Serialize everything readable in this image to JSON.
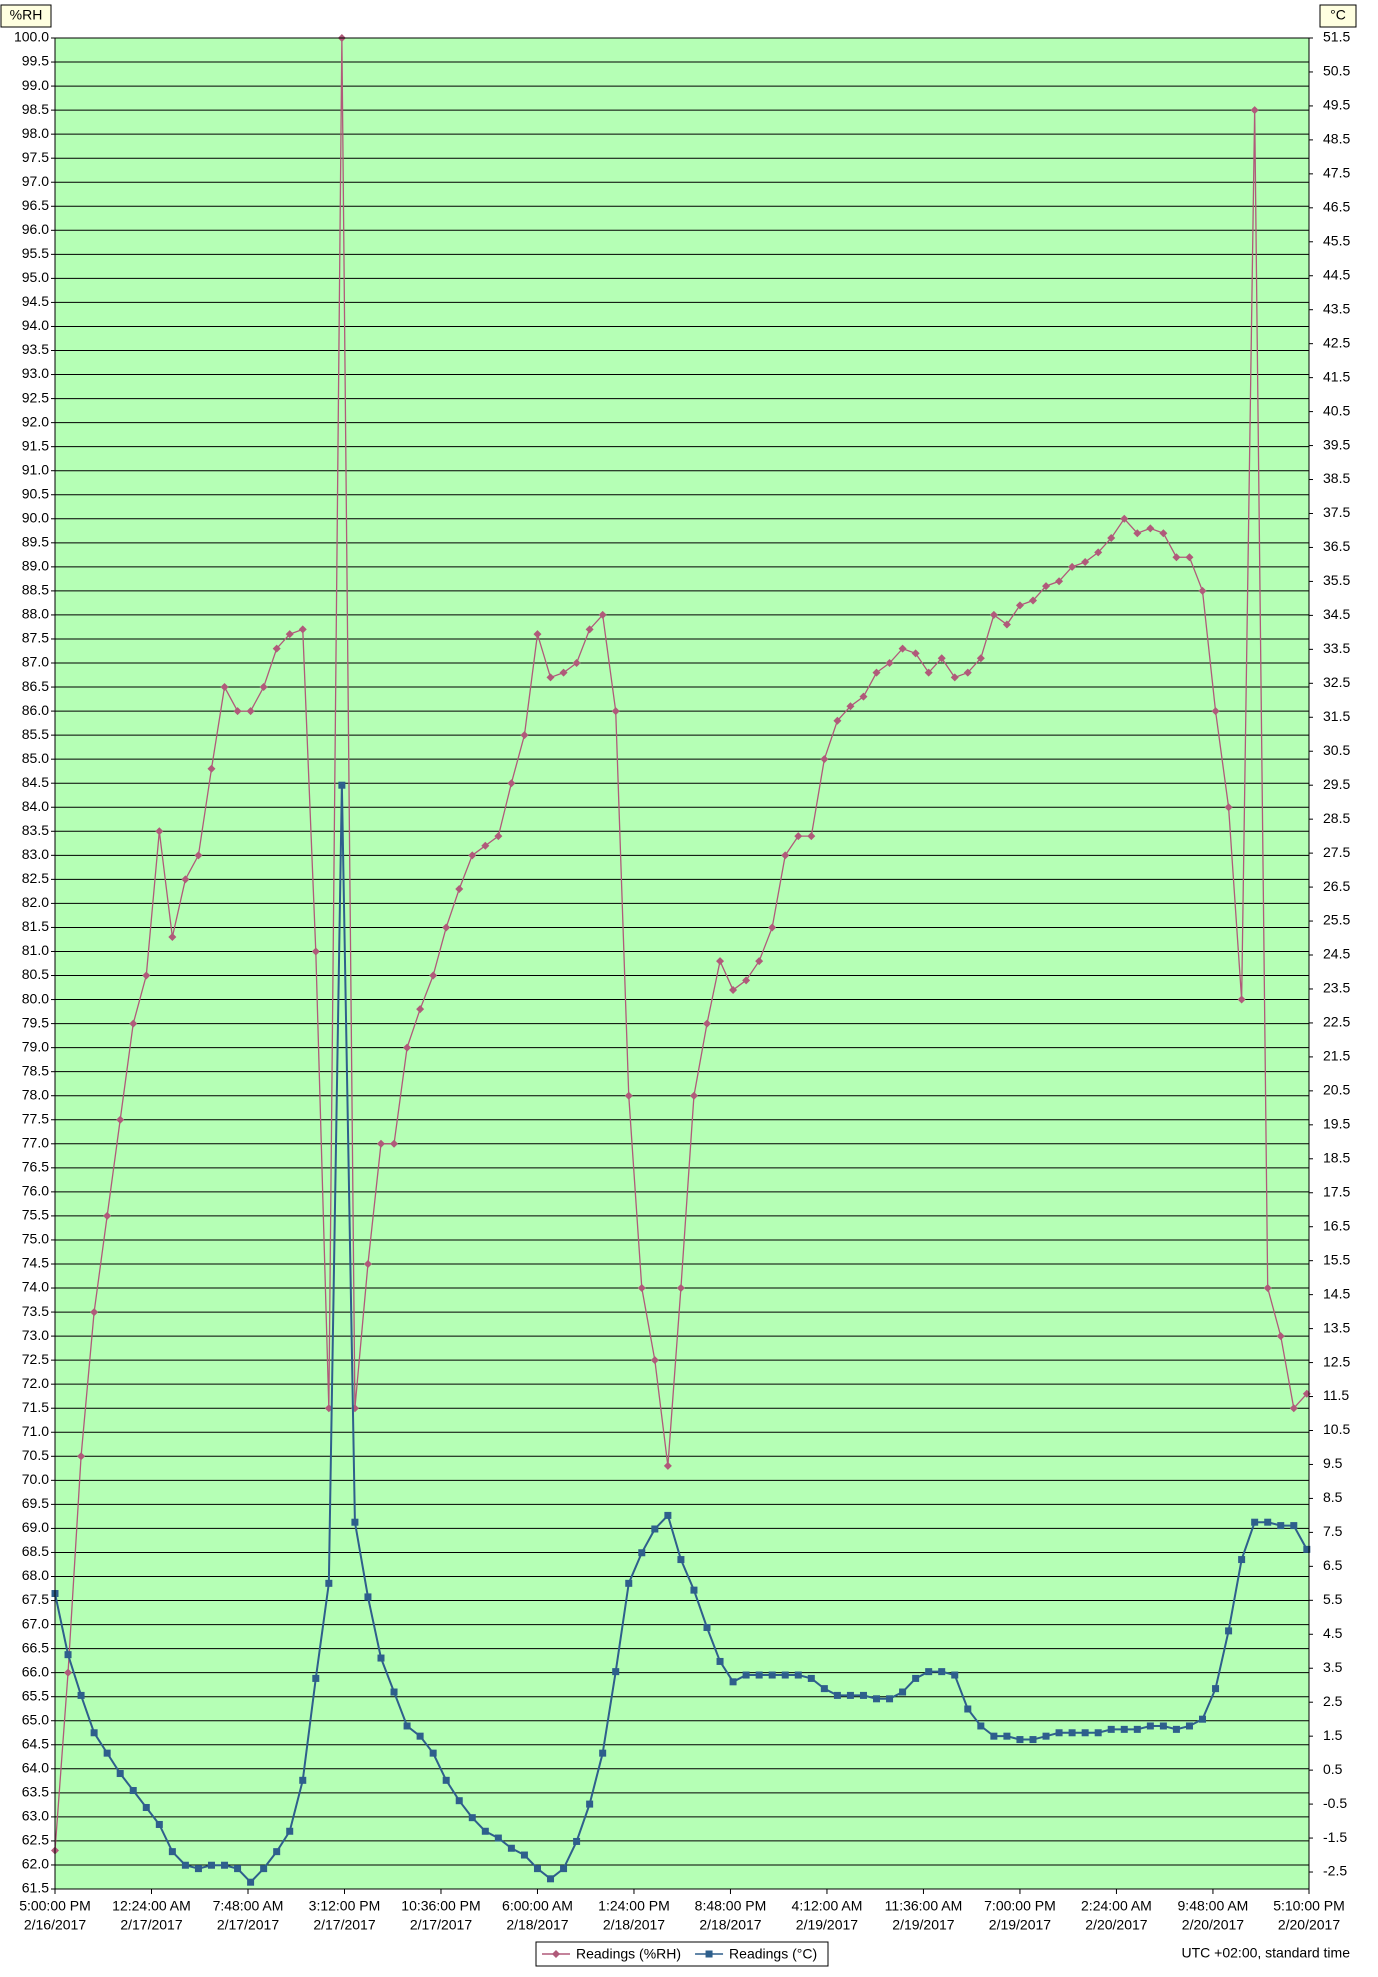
{
  "chart_data": {
    "type": "line",
    "y_label": "%RH",
    "y2_label": "°C",
    "footnote": "UTC +02:00, standard time",
    "background": "#b5ffb5",
    "grid": true,
    "xlim": [
      "2017-02-16T17:00",
      "2017-02-20T17:10"
    ],
    "xticks": [
      {
        "value": "2017-02-16T17:00",
        "label": [
          "5:00:00 PM",
          "2/16/2017"
        ]
      },
      {
        "value": "2017-02-17T00:24",
        "label": [
          "12:24:00 AM",
          "2/17/2017"
        ]
      },
      {
        "value": "2017-02-17T07:48",
        "label": [
          "7:48:00 AM",
          "2/17/2017"
        ]
      },
      {
        "value": "2017-02-17T15:12",
        "label": [
          "3:12:00 PM",
          "2/17/2017"
        ]
      },
      {
        "value": "2017-02-17T22:36",
        "label": [
          "10:36:00 PM",
          "2/17/2017"
        ]
      },
      {
        "value": "2017-02-18T06:00",
        "label": [
          "6:00:00 AM",
          "2/18/2017"
        ]
      },
      {
        "value": "2017-02-18T13:24",
        "label": [
          "1:24:00 PM",
          "2/18/2017"
        ]
      },
      {
        "value": "2017-02-18T20:48",
        "label": [
          "8:48:00 PM",
          "2/18/2017"
        ]
      },
      {
        "value": "2017-02-19T04:12",
        "label": [
          "4:12:00 AM",
          "2/19/2017"
        ]
      },
      {
        "value": "2017-02-19T11:36",
        "label": [
          "11:36:00 AM",
          "2/19/2017"
        ]
      },
      {
        "value": "2017-02-19T19:00",
        "label": [
          "7:00:00 PM",
          "2/19/2017"
        ]
      },
      {
        "value": "2017-02-20T02:24",
        "label": [
          "2:24:00 AM",
          "2/20/2017"
        ]
      },
      {
        "value": "2017-02-20T09:48",
        "label": [
          "9:48:00 AM",
          "2/20/2017"
        ]
      },
      {
        "value": "2017-02-20T17:10",
        "label": [
          "5:10:00 PM",
          "2/20/2017"
        ]
      }
    ],
    "ylim": [
      61.5,
      100
    ],
    "yticks": [
      61.5,
      {
        "value": 62,
        "label": "62.0"
      },
      62.5,
      {
        "value": 63,
        "label": "63.0"
      },
      63.5,
      {
        "value": 64,
        "label": "64.0"
      },
      64.5,
      {
        "value": 65,
        "label": "65.0"
      },
      65.5,
      {
        "value": 66,
        "label": "66.0"
      },
      66.5,
      {
        "value": 67,
        "label": "67.0"
      },
      67.5,
      {
        "value": 68,
        "label": "68.0"
      },
      68.5,
      {
        "value": 69,
        "label": "69.0"
      },
      69.5,
      {
        "value": 70,
        "label": "70.0"
      },
      70.5,
      {
        "value": 71,
        "label": "71.0"
      },
      71.5,
      {
        "value": 72,
        "label": "72.0"
      },
      72.5,
      {
        "value": 73,
        "label": "73.0"
      },
      73.5,
      {
        "value": 74,
        "label": "74.0"
      },
      74.5,
      {
        "value": 75,
        "label": "75.0"
      },
      75.5,
      {
        "value": 76,
        "label": "76.0"
      },
      76.5,
      {
        "value": 77,
        "label": "77.0"
      },
      77.5,
      {
        "value": 78,
        "label": "78.0"
      },
      78.5,
      {
        "value": 79,
        "label": "79.0"
      },
      79.5,
      {
        "value": 80,
        "label": "80.0"
      },
      80.5,
      {
        "value": 81,
        "label": "81.0"
      },
      81.5,
      {
        "value": 82,
        "label": "82.0"
      },
      82.5,
      {
        "value": 83,
        "label": "83.0"
      },
      83.5,
      {
        "value": 84,
        "label": "84.0"
      },
      84.5,
      {
        "value": 85,
        "label": "85.0"
      },
      85.5,
      {
        "value": 86,
        "label": "86.0"
      },
      86.5,
      {
        "value": 87,
        "label": "87.0"
      },
      87.5,
      {
        "value": 88,
        "label": "88.0"
      },
      88.5,
      {
        "value": 89,
        "label": "89.0"
      },
      89.5,
      {
        "value": 90,
        "label": "90.0"
      },
      90.5,
      {
        "value": 91,
        "label": "91.0"
      },
      91.5,
      {
        "value": 92,
        "label": "92.0"
      },
      92.5,
      {
        "value": 93,
        "label": "93.0"
      },
      93.5,
      {
        "value": 94,
        "label": "94.0"
      },
      94.5,
      {
        "value": 95,
        "label": "95.0"
      },
      95.5,
      {
        "value": 96,
        "label": "96.0"
      },
      96.5,
      {
        "value": 97,
        "label": "97.0"
      },
      97.5,
      {
        "value": 98,
        "label": "98.0"
      },
      98.5,
      {
        "value": 99,
        "label": "99.0"
      },
      99.5,
      {
        "value": 100,
        "label": "100.0"
      }
    ],
    "y2lim": [
      -3,
      51.5
    ],
    "y2ticks": [
      -2.5,
      -1.5,
      -0.5,
      0.5,
      1.5,
      2.5,
      3.5,
      4.5,
      5.5,
      6.5,
      7.5,
      8.5,
      9.5,
      10.5,
      11.5,
      12.5,
      13.5,
      14.5,
      15.5,
      16.5,
      17.5,
      18.5,
      19.5,
      20.5,
      21.5,
      22.5,
      23.5,
      24.5,
      25.5,
      26.5,
      27.5,
      28.5,
      29.5,
      30.5,
      31.5,
      32.5,
      33.5,
      34.5,
      35.5,
      36.5,
      37.5,
      38.5,
      39.5,
      40.5,
      41.5,
      42.5,
      43.5,
      44.5,
      45.5,
      46.5,
      47.5,
      48.5,
      49.5,
      50.5,
      51.5
    ],
    "x": [
      "2017-02-16T17:00",
      "2017-02-16T18:00",
      "2017-02-16T19:00",
      "2017-02-16T20:00",
      "2017-02-16T21:00",
      "2017-02-16T22:00",
      "2017-02-16T23:00",
      "2017-02-17T00:00",
      "2017-02-17T01:00",
      "2017-02-17T02:00",
      "2017-02-17T03:00",
      "2017-02-17T04:00",
      "2017-02-17T05:00",
      "2017-02-17T06:00",
      "2017-02-17T07:00",
      "2017-02-17T08:00",
      "2017-02-17T09:00",
      "2017-02-17T10:00",
      "2017-02-17T11:00",
      "2017-02-17T12:00",
      "2017-02-17T13:00",
      "2017-02-17T14:00",
      "2017-02-17T15:00",
      "2017-02-17T16:00",
      "2017-02-17T17:00",
      "2017-02-17T18:00",
      "2017-02-17T19:00",
      "2017-02-17T20:00",
      "2017-02-17T21:00",
      "2017-02-17T22:00",
      "2017-02-17T23:00",
      "2017-02-18T00:00",
      "2017-02-18T01:00",
      "2017-02-18T02:00",
      "2017-02-18T03:00",
      "2017-02-18T04:00",
      "2017-02-18T05:00",
      "2017-02-18T06:00",
      "2017-02-18T07:00",
      "2017-02-18T08:00",
      "2017-02-18T09:00",
      "2017-02-18T10:00",
      "2017-02-18T11:00",
      "2017-02-18T12:00",
      "2017-02-18T13:00",
      "2017-02-18T14:00",
      "2017-02-18T15:00",
      "2017-02-18T16:00",
      "2017-02-18T17:00",
      "2017-02-18T18:00",
      "2017-02-18T19:00",
      "2017-02-18T20:00",
      "2017-02-18T21:00",
      "2017-02-18T22:00",
      "2017-02-18T23:00",
      "2017-02-19T00:00",
      "2017-02-19T01:00",
      "2017-02-19T02:00",
      "2017-02-19T03:00",
      "2017-02-19T04:00",
      "2017-02-19T05:00",
      "2017-02-19T06:00",
      "2017-02-19T07:00",
      "2017-02-19T08:00",
      "2017-02-19T09:00",
      "2017-02-19T10:00",
      "2017-02-19T11:00",
      "2017-02-19T12:00",
      "2017-02-19T13:00",
      "2017-02-19T14:00",
      "2017-02-19T15:00",
      "2017-02-19T16:00",
      "2017-02-19T17:00",
      "2017-02-19T18:00",
      "2017-02-19T19:00",
      "2017-02-19T20:00",
      "2017-02-19T21:00",
      "2017-02-19T22:00",
      "2017-02-19T23:00",
      "2017-02-20T00:00",
      "2017-02-20T01:00",
      "2017-02-20T02:00",
      "2017-02-20T03:00",
      "2017-02-20T04:00",
      "2017-02-20T05:00",
      "2017-02-20T06:00",
      "2017-02-20T07:00",
      "2017-02-20T08:00",
      "2017-02-20T09:00",
      "2017-02-20T10:00",
      "2017-02-20T11:00",
      "2017-02-20T12:00",
      "2017-02-20T13:00",
      "2017-02-20T14:00",
      "2017-02-20T15:00",
      "2017-02-20T16:00",
      "2017-02-20T17:00"
    ],
    "series": [
      {
        "name": "Readings (%RH)",
        "color": "#b05a7a",
        "marker": "diamond",
        "values": [
          62.3,
          66,
          70.5,
          73.5,
          75.5,
          77.5,
          79.5,
          80.5,
          83.5,
          81.3,
          82.5,
          83,
          84.8,
          86.5,
          86,
          86,
          86.5,
          87.3,
          87.6,
          87.7,
          81,
          71.5,
          100,
          71.5,
          74.5,
          77,
          77,
          79,
          79.8,
          80.5,
          81.5,
          82.3,
          83,
          83.2,
          83.4,
          84.5,
          85.5,
          87.6,
          86.7,
          86.8,
          87,
          87.7,
          88,
          86,
          78,
          74,
          72.5,
          70.3,
          74,
          78,
          79.5,
          80.8,
          80.2,
          80.4,
          80.8,
          81.5,
          83,
          83.4,
          83.4,
          85,
          85.8,
          86.1,
          86.3,
          86.8,
          87,
          87.3,
          87.2,
          86.8,
          87.1,
          86.7,
          86.8,
          87.1,
          88,
          87.8,
          88.2,
          88.3,
          88.6,
          88.7,
          89,
          89.1,
          89.3,
          89.6,
          90,
          89.7,
          89.8,
          89.7,
          89.2,
          89.2,
          88.5,
          86,
          84,
          80,
          98.5,
          74,
          73,
          71.5,
          71.8
        ]
      },
      {
        "name": "Readings (°C)",
        "color": "#2e5f8c",
        "marker": "square",
        "axis": "y2",
        "values": [
          5.7,
          3.9,
          2.7,
          1.6,
          1.0,
          0.4,
          -0.1,
          -0.6,
          -1.1,
          -1.9,
          -2.3,
          -2.4,
          -2.3,
          -2.3,
          -2.4,
          -2.8,
          -2.4,
          -1.9,
          -1.3,
          0.2,
          3.2,
          6.0,
          29.5,
          7.8,
          5.6,
          3.8,
          2.8,
          1.8,
          1.5,
          1.0,
          0.2,
          -0.4,
          -0.9,
          -1.3,
          -1.5,
          -1.8,
          -2.0,
          -2.4,
          -2.7,
          -2.4,
          -1.6,
          -0.5,
          1.0,
          3.4,
          6.0,
          6.9,
          7.6,
          8.0,
          6.7,
          5.8,
          4.7,
          3.7,
          3.1,
          3.3,
          3.3,
          3.3,
          3.3,
          3.3,
          3.2,
          2.9,
          2.7,
          2.7,
          2.7,
          2.6,
          2.6,
          2.8,
          3.2,
          3.4,
          3.4,
          3.3,
          2.3,
          1.8,
          1.5,
          1.5,
          1.4,
          1.4,
          1.5,
          1.6,
          1.6,
          1.6,
          1.6,
          1.7,
          1.7,
          1.7,
          1.8,
          1.8,
          1.7,
          1.8,
          2.0,
          2.9,
          4.6,
          6.7,
          7.8,
          7.8,
          7.7,
          7.7,
          7.0
        ]
      }
    ]
  }
}
